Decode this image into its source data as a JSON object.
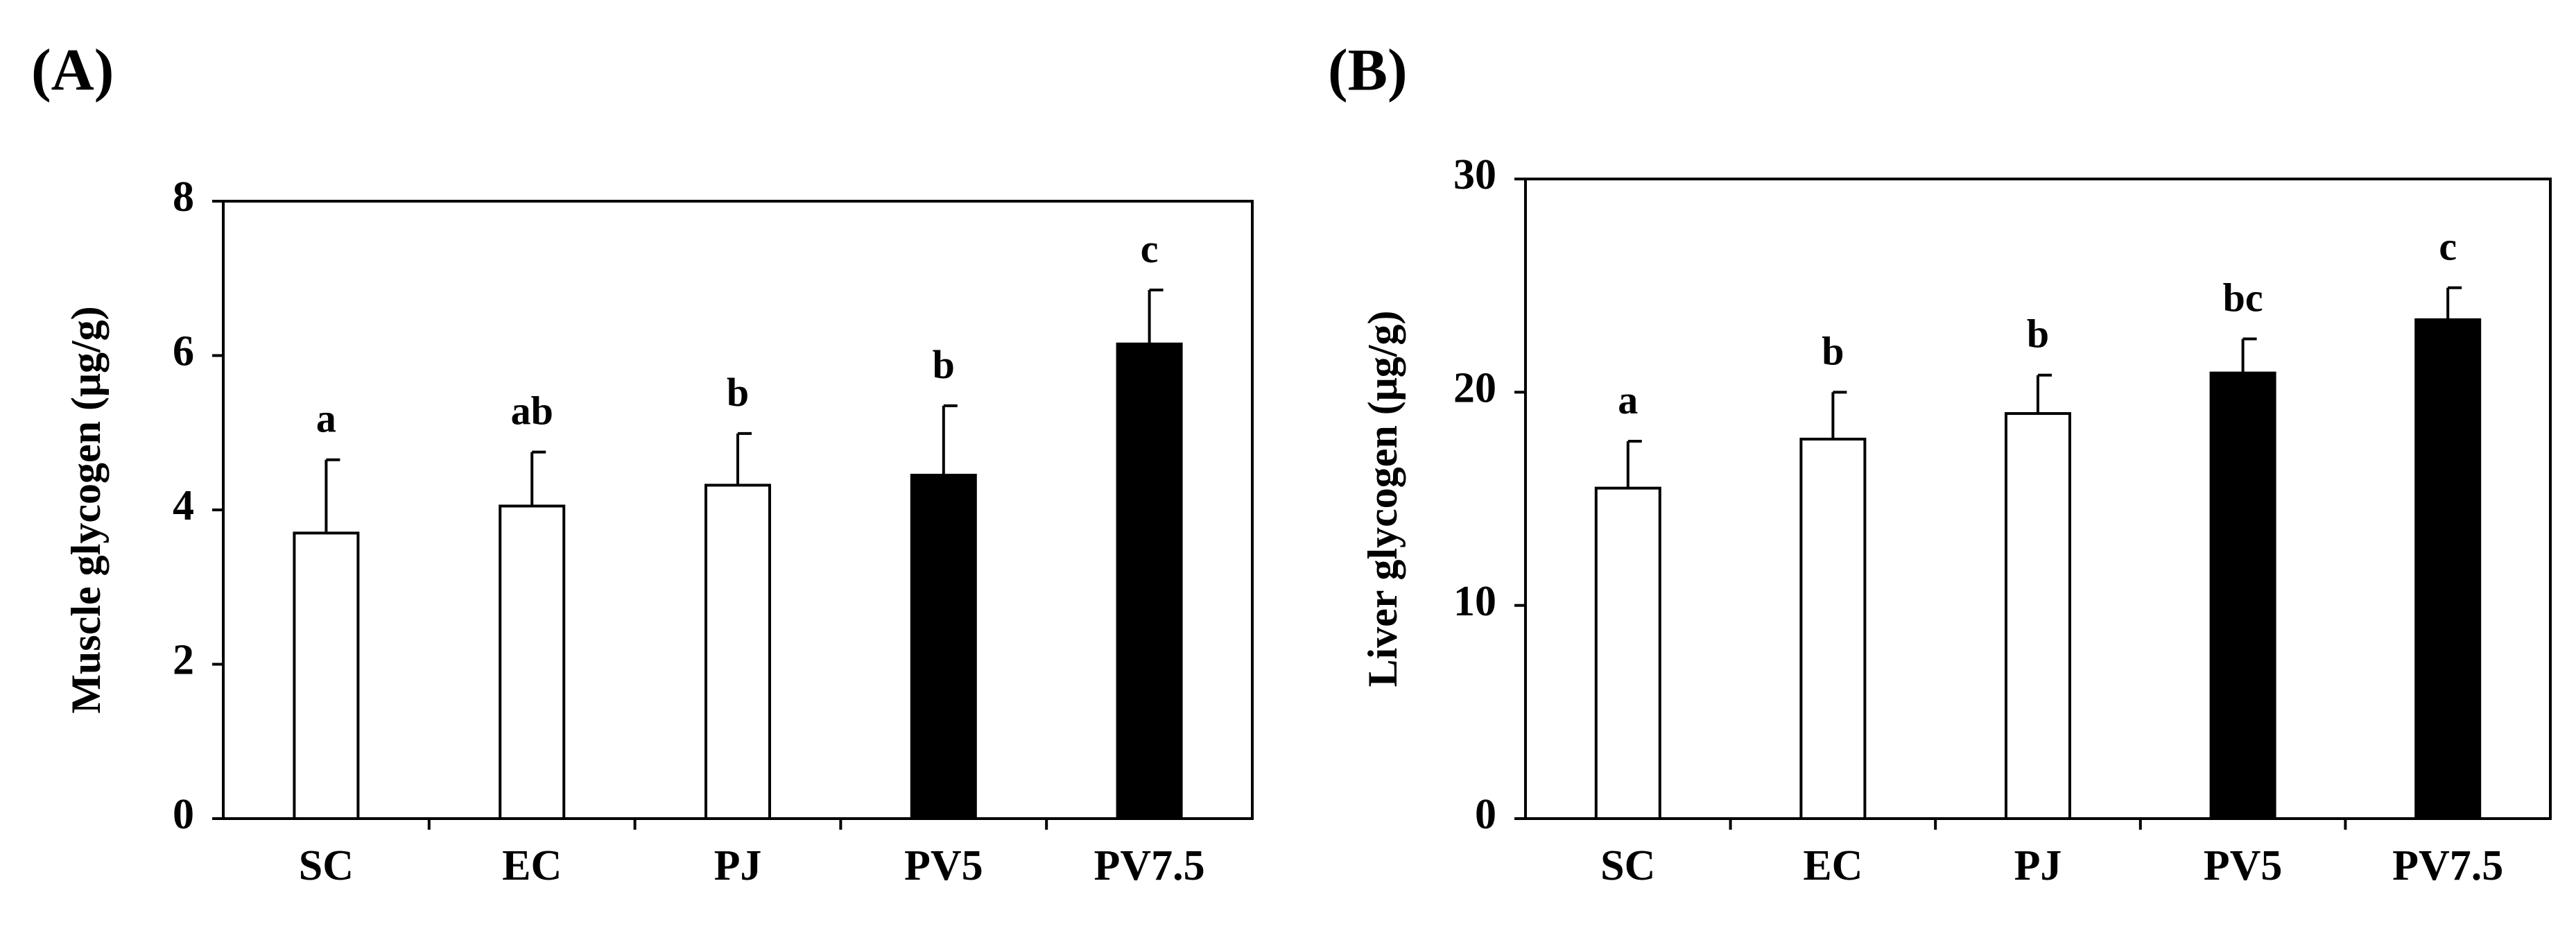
{
  "chart_data": [
    {
      "type": "bar",
      "panel_label": "(A)",
      "title": "",
      "xlabel": "",
      "ylabel": "Muscle glycogen (μg/g)",
      "ylim": [
        0,
        8
      ],
      "yticks": [
        0,
        2,
        4,
        6,
        8
      ],
      "categories": [
        "SC",
        "EC",
        "PJ",
        "PV5",
        "PV7.5"
      ],
      "values": [
        3.7,
        4.05,
        4.32,
        4.45,
        6.15
      ],
      "errors": [
        0.95,
        0.7,
        0.67,
        0.9,
        0.7
      ],
      "significance": [
        "a",
        "ab",
        "b",
        "b",
        "c"
      ],
      "fills": [
        "#ffffff",
        "#ffffff",
        "#ffffff",
        "#000000",
        "#000000"
      ],
      "grid": false,
      "legend": "none"
    },
    {
      "type": "bar",
      "panel_label": "(B)",
      "title": "",
      "xlabel": "",
      "ylabel": "Liver glycogen (μg/g)",
      "ylim": [
        0,
        30
      ],
      "yticks": [
        0,
        10,
        20,
        30
      ],
      "categories": [
        "SC",
        "EC",
        "PJ",
        "PV5",
        "PV7.5"
      ],
      "values": [
        15.5,
        17.8,
        19.0,
        20.9,
        23.4
      ],
      "errors": [
        2.2,
        2.2,
        1.8,
        1.6,
        1.5
      ],
      "significance": [
        "a",
        "b",
        "b",
        "bc",
        "c"
      ],
      "fills": [
        "#ffffff",
        "#ffffff",
        "#ffffff",
        "#000000",
        "#000000"
      ],
      "grid": false,
      "legend": "none"
    }
  ]
}
